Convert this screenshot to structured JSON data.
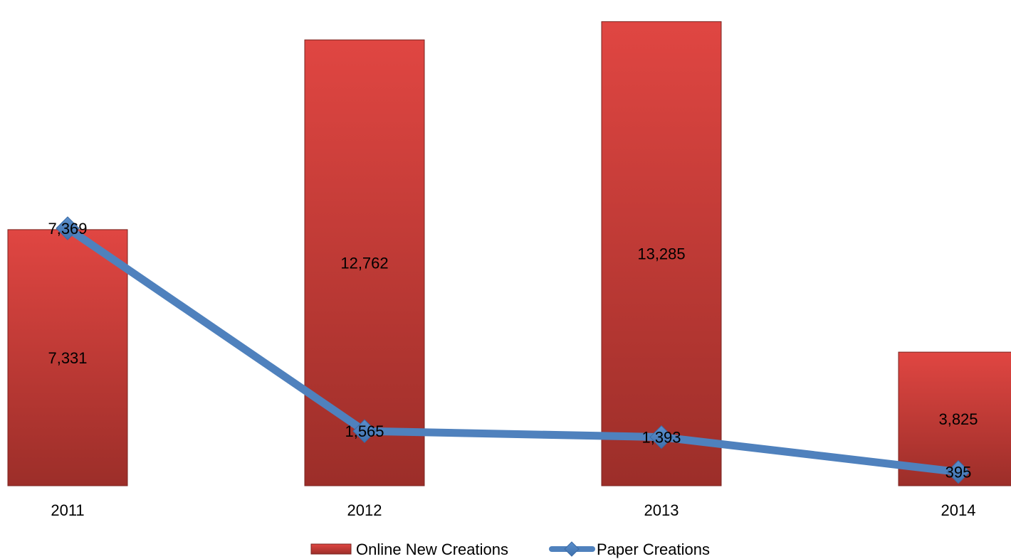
{
  "chart_data": {
    "type": "bar",
    "categories": [
      "2011",
      "2012",
      "2013",
      "2014"
    ],
    "series": [
      {
        "name": "Online New Creations",
        "type": "bar",
        "values": [
          7331,
          12762,
          13285,
          3825
        ],
        "value_labels": [
          "7,331",
          "12,762",
          "13,285",
          "3,825"
        ],
        "color": "#c0392b"
      },
      {
        "name": "Paper Creations",
        "type": "line",
        "marker": "diamond",
        "values": [
          7369,
          1565,
          1393,
          395
        ],
        "value_labels": [
          "7,369",
          "1,565",
          "1,393",
          "395"
        ],
        "color": "#4f81bd"
      }
    ],
    "ylim": [
      0,
      13700
    ],
    "grid": false,
    "legend": "bottom-center"
  }
}
